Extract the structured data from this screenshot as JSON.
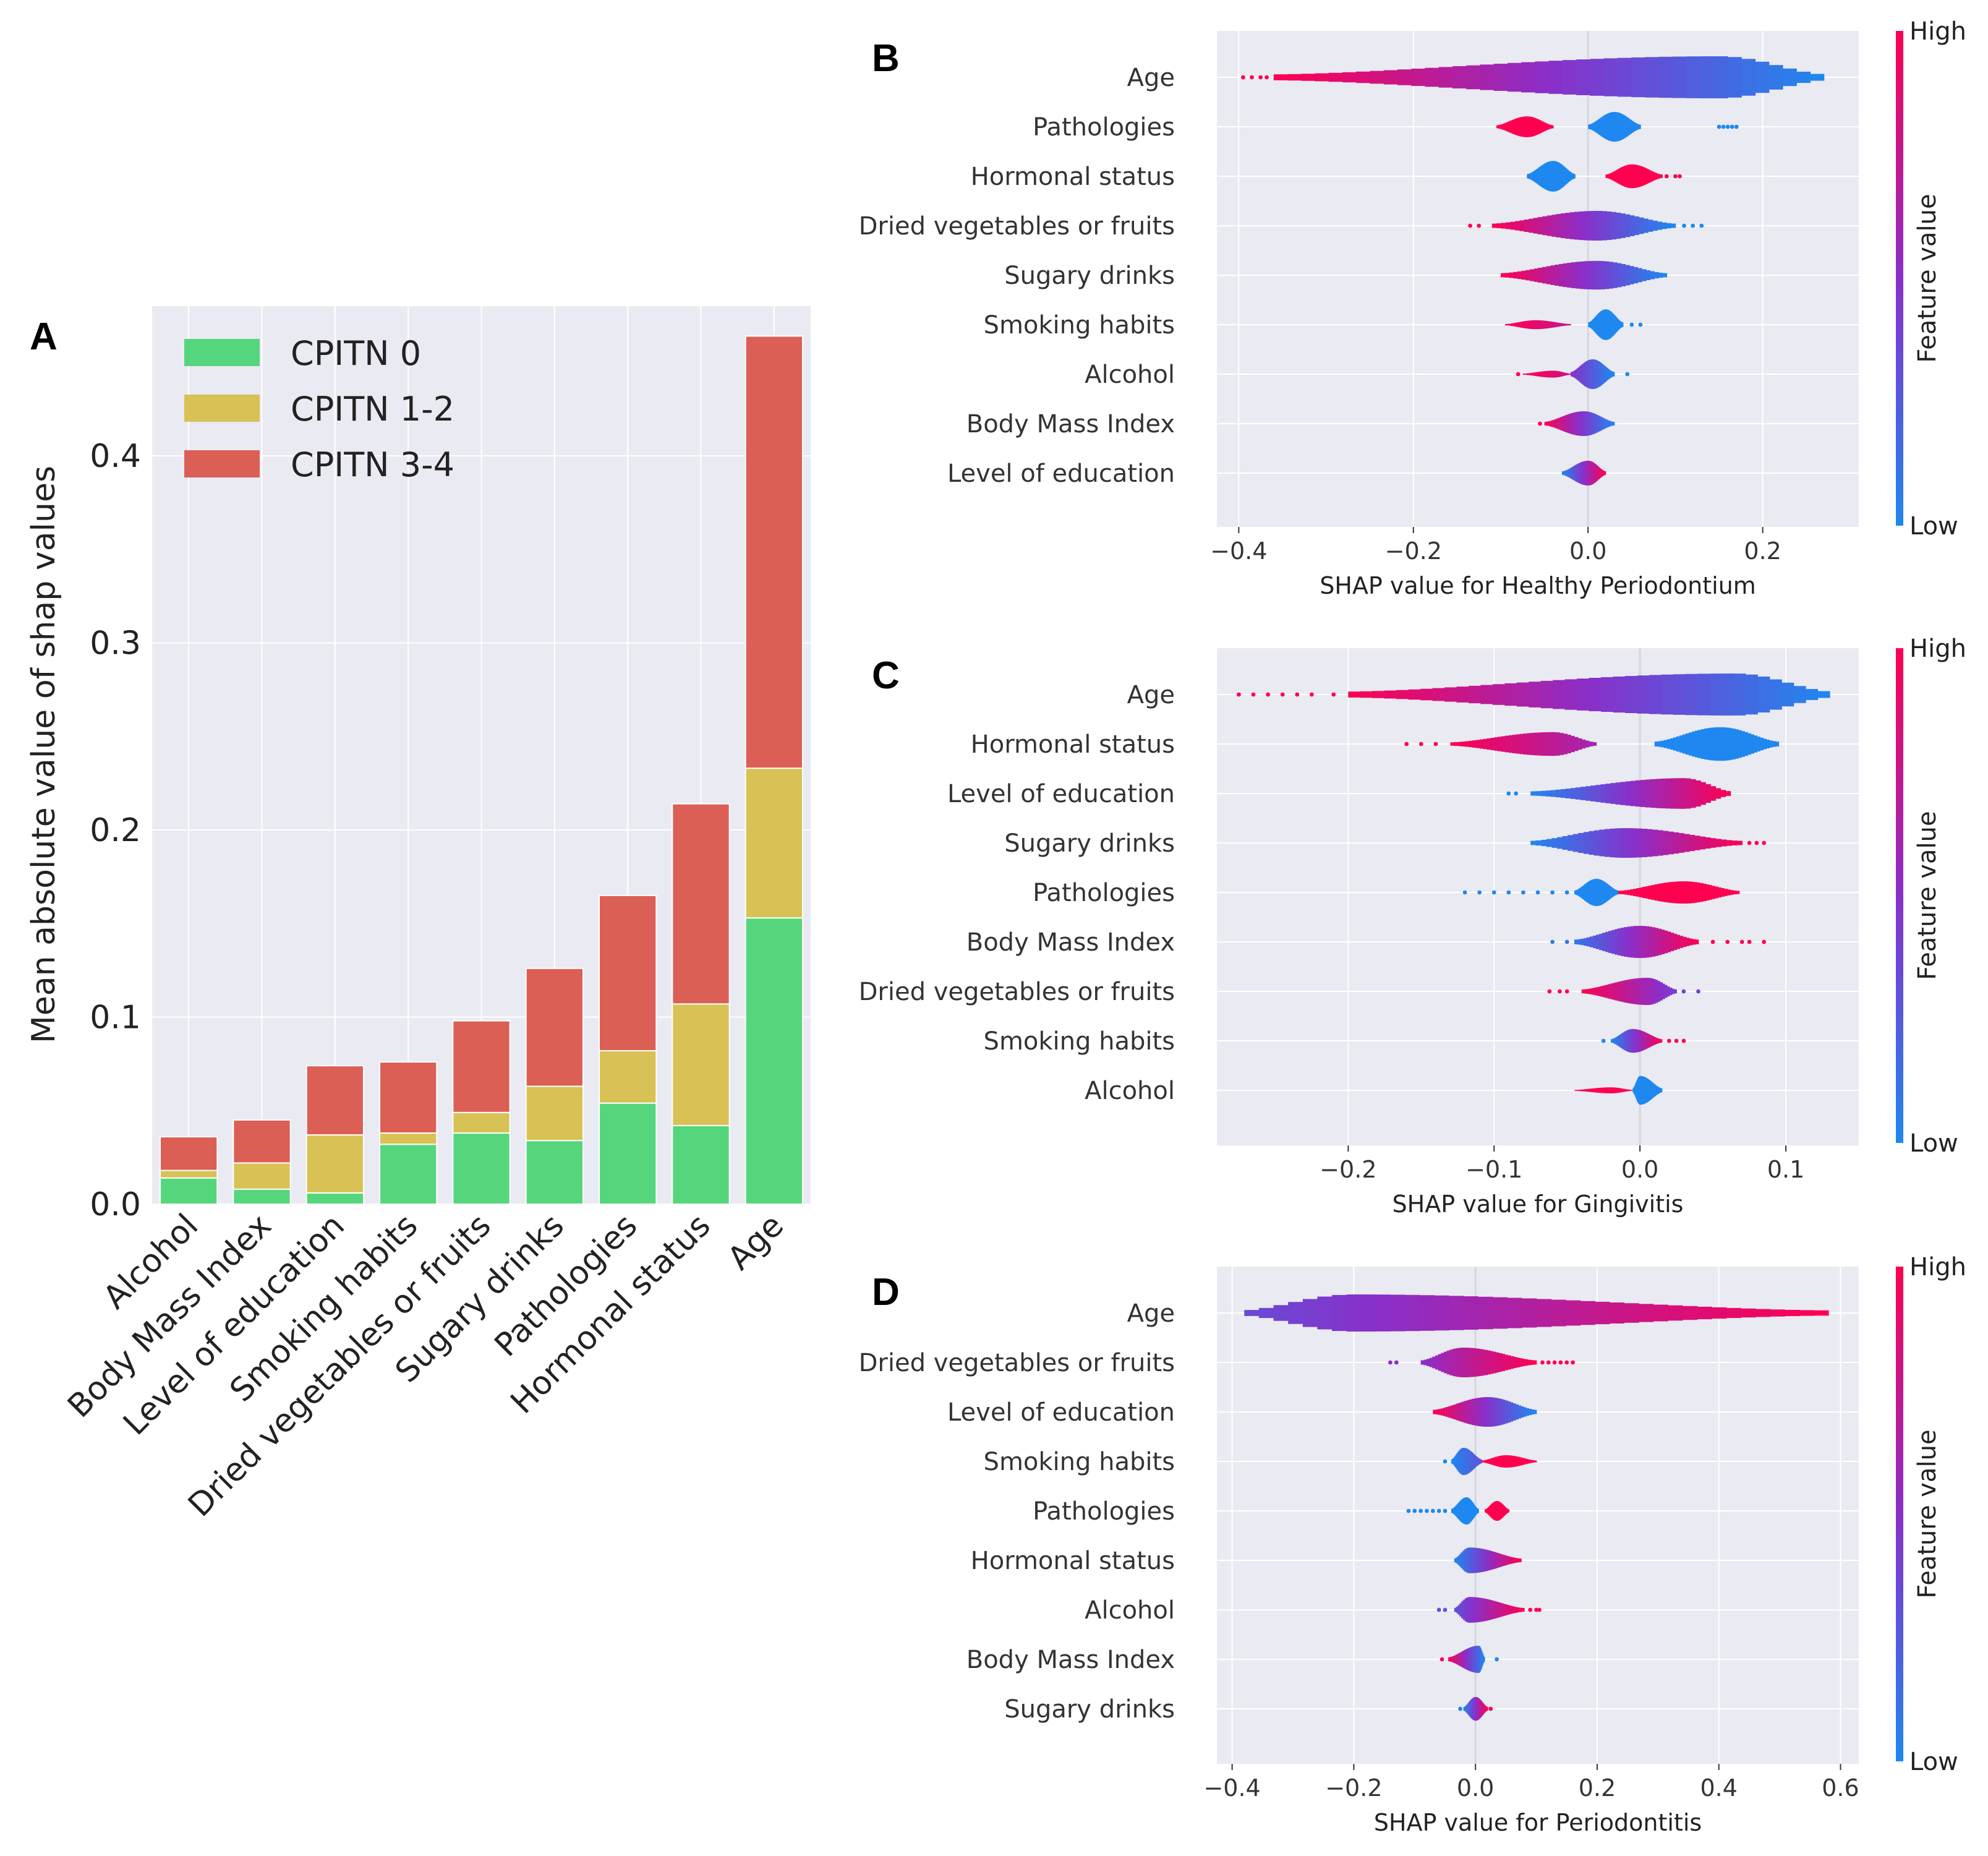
{
  "panels": {
    "A": {
      "letter": "A"
    },
    "B": {
      "letter": "B"
    },
    "C": {
      "letter": "C"
    },
    "D": {
      "letter": "D"
    }
  },
  "colors": {
    "cpitn0": "#55d67c",
    "cpitn12": "#d8c155",
    "cpitn34": "#db5f55",
    "low": "#1e88f0",
    "mid": "#8a2fc9",
    "high": "#ff0050",
    "plot_bg": "#eaeaf2"
  },
  "chart_data": [
    {
      "id": "A",
      "type": "bar",
      "stacked": true,
      "categories": [
        "Alcohol",
        "Body Mass Index",
        "Level of education",
        "Smoking habits",
        "Dried vegetables or fruits",
        "Sugary drinks",
        "Pathologies",
        "Hormonal status",
        "Age"
      ],
      "series": [
        {
          "name": "CPITN 0",
          "values": [
            0.014,
            0.008,
            0.006,
            0.032,
            0.038,
            0.034,
            0.054,
            0.042,
            0.153
          ]
        },
        {
          "name": "CPITN 1-2",
          "values": [
            0.004,
            0.014,
            0.031,
            0.006,
            0.011,
            0.029,
            0.028,
            0.065,
            0.08
          ]
        },
        {
          "name": "CPITN 3-4",
          "values": [
            0.018,
            0.023,
            0.037,
            0.038,
            0.049,
            0.063,
            0.083,
            0.107,
            0.231
          ]
        }
      ],
      "ylabel": "Mean absolute value of shap values",
      "xlabel": "",
      "ylim": [
        0,
        0.48
      ],
      "yticks": [
        0.0,
        0.1,
        0.2,
        0.3,
        0.4
      ],
      "ytick_labels": [
        "0.0",
        "0.1",
        "0.2",
        "0.3",
        "0.4"
      ],
      "legend_position": "top-left",
      "grid": true
    },
    {
      "id": "B",
      "type": "violin",
      "xlabel": "SHAP value for Healthy Periodontium",
      "xlim": [
        -0.425,
        0.31
      ],
      "xticks": [
        -0.4,
        -0.2,
        0.0,
        0.2
      ],
      "xtick_labels": [
        "−0.4",
        "−0.2",
        "0.0",
        "0.2"
      ],
      "colorbar": {
        "label": "Feature value",
        "high": "High",
        "low": "Low"
      },
      "features": [
        {
          "name": "Age",
          "min": -0.395,
          "max": 0.27,
          "parts": [
            {
              "from": -0.36,
              "to": 0.27,
              "peak": 0.15,
              "height": 0.85,
              "c0": 1.0,
              "c1": 0.0
            }
          ],
          "dots": [
            -0.395,
            -0.385,
            -0.375,
            -0.368
          ]
        },
        {
          "name": "Pathologies",
          "min": -0.105,
          "max": 0.17,
          "parts": [
            {
              "from": -0.105,
              "to": -0.04,
              "peak": -0.07,
              "height": 0.42,
              "c0": 1.0,
              "c1": 1.0
            },
            {
              "from": 0.0,
              "to": 0.06,
              "peak": 0.03,
              "height": 0.6,
              "c0": 0.0,
              "c1": 0.0
            }
          ],
          "dots": [
            0.15,
            0.155,
            0.16,
            0.165,
            0.17
          ]
        },
        {
          "name": "Hormonal status",
          "min": -0.07,
          "max": 0.11,
          "parts": [
            {
              "from": -0.07,
              "to": -0.015,
              "peak": -0.04,
              "height": 0.62,
              "c0": 0.0,
              "c1": 0.0
            },
            {
              "from": 0.02,
              "to": 0.085,
              "peak": 0.05,
              "height": 0.48,
              "c0": 1.0,
              "c1": 1.0
            }
          ],
          "dots": [
            0.09,
            0.1,
            0.105
          ]
        },
        {
          "name": "Dried vegetables or fruits",
          "min": -0.135,
          "max": 0.13,
          "parts": [
            {
              "from": -0.11,
              "to": 0.1,
              "peak": 0.01,
              "height": 0.6,
              "c0": 1.0,
              "c1": 0.0
            }
          ],
          "dots": [
            -0.135,
            -0.125,
            0.11,
            0.12,
            0.13
          ]
        },
        {
          "name": "Sugary drinks",
          "min": -0.1,
          "max": 0.09,
          "parts": [
            {
              "from": -0.1,
              "to": 0.09,
              "peak": 0.01,
              "height": 0.58,
              "c0": 1.0,
              "c1": 0.0
            }
          ],
          "dots": []
        },
        {
          "name": "Smoking habits",
          "min": -0.095,
          "max": 0.06,
          "parts": [
            {
              "from": -0.095,
              "to": -0.02,
              "peak": -0.06,
              "height": 0.18,
              "c0": 1.0,
              "c1": 0.75
            },
            {
              "from": 0.0,
              "to": 0.04,
              "peak": 0.02,
              "height": 0.62,
              "c0": 0.0,
              "c1": 0.0
            }
          ],
          "dots": [
            0.05,
            0.06
          ]
        },
        {
          "name": "Alcohol",
          "min": -0.08,
          "max": 0.05,
          "parts": [
            {
              "from": -0.075,
              "to": -0.02,
              "peak": -0.04,
              "height": 0.14,
              "c0": 1.0,
              "c1": 0.8
            },
            {
              "from": -0.02,
              "to": 0.03,
              "peak": 0.005,
              "height": 0.6,
              "c0": 0.5,
              "c1": 0.0
            }
          ],
          "dots": [
            -0.08,
            0.045
          ]
        },
        {
          "name": "Body Mass Index",
          "min": -0.055,
          "max": 0.03,
          "parts": [
            {
              "from": -0.05,
              "to": 0.03,
              "peak": -0.005,
              "height": 0.5,
              "c0": 1.0,
              "c1": 0.0
            }
          ],
          "dots": [
            -0.055
          ]
        },
        {
          "name": "Level of education",
          "min": -0.03,
          "max": 0.02,
          "parts": [
            {
              "from": -0.03,
              "to": 0.02,
              "peak": 0.0,
              "height": 0.5,
              "c0": 0.0,
              "c1": 1.0
            }
          ],
          "dots": []
        }
      ]
    },
    {
      "id": "C",
      "type": "violin",
      "xlabel": "SHAP value for Gingivitis",
      "xlim": [
        -0.29,
        0.15
      ],
      "xticks": [
        -0.2,
        -0.1,
        0.0,
        0.1
      ],
      "xtick_labels": [
        "−0.2",
        "−0.1",
        "0.0",
        "0.1"
      ],
      "colorbar": {
        "label": "Feature value",
        "high": "High",
        "low": "Low"
      },
      "features": [
        {
          "name": "Age",
          "min": -0.275,
          "max": 0.13,
          "parts": [
            {
              "from": -0.2,
              "to": 0.13,
              "peak": 0.065,
              "height": 0.85,
              "c0": 1.0,
              "c1": 0.0
            }
          ],
          "dots": [
            -0.275,
            -0.265,
            -0.255,
            -0.245,
            -0.235,
            -0.225,
            -0.21
          ]
        },
        {
          "name": "Hormonal status",
          "min": -0.16,
          "max": 0.095,
          "parts": [
            {
              "from": -0.13,
              "to": -0.03,
              "peak": -0.06,
              "height": 0.48,
              "c0": 1.0,
              "c1": 0.6
            },
            {
              "from": 0.01,
              "to": 0.095,
              "peak": 0.055,
              "height": 0.68,
              "c0": 0.0,
              "c1": 0.0
            }
          ],
          "dots": [
            -0.16,
            -0.15,
            -0.14
          ]
        },
        {
          "name": "Level of education",
          "min": -0.09,
          "max": 0.062,
          "parts": [
            {
              "from": -0.075,
              "to": 0.062,
              "peak": 0.03,
              "height": 0.62,
              "c0": 0.0,
              "c1": 1.0
            }
          ],
          "dots": [
            -0.09,
            -0.085
          ]
        },
        {
          "name": "Sugary drinks",
          "min": -0.075,
          "max": 0.085,
          "parts": [
            {
              "from": -0.075,
              "to": 0.07,
              "peak": -0.01,
              "height": 0.6,
              "c0": 0.0,
              "c1": 1.0
            }
          ],
          "dots": [
            0.075,
            0.08,
            0.085
          ]
        },
        {
          "name": "Pathologies",
          "min": -0.12,
          "max": 0.068,
          "parts": [
            {
              "from": -0.045,
              "to": -0.015,
              "peak": -0.03,
              "height": 0.55,
              "c0": 0.0,
              "c1": 0.0
            },
            {
              "from": -0.015,
              "to": 0.068,
              "peak": 0.03,
              "height": 0.45,
              "c0": 1.0,
              "c1": 1.0
            }
          ],
          "dots": [
            -0.12,
            -0.11,
            -0.1,
            -0.09,
            -0.08,
            -0.07,
            -0.06,
            -0.05
          ]
        },
        {
          "name": "Body Mass Index",
          "min": -0.06,
          "max": 0.085,
          "parts": [
            {
              "from": -0.045,
              "to": 0.04,
              "peak": 0.0,
              "height": 0.65,
              "c0": 0.1,
              "c1": 1.0
            }
          ],
          "dots": [
            -0.06,
            -0.05,
            0.05,
            0.06,
            0.07,
            0.075,
            0.085
          ]
        },
        {
          "name": "Dried vegetables or fruits",
          "min": -0.062,
          "max": 0.04,
          "parts": [
            {
              "from": -0.04,
              "to": 0.025,
              "peak": 0.005,
              "height": 0.55,
              "c0": 1.0,
              "c1": 0.4
            }
          ],
          "dots": [
            -0.062,
            -0.055,
            -0.05,
            0.03,
            0.04
          ]
        },
        {
          "name": "Smoking habits",
          "min": -0.025,
          "max": 0.03,
          "parts": [
            {
              "from": -0.02,
              "to": 0.015,
              "peak": -0.005,
              "height": 0.48,
              "c0": 0.0,
              "c1": 1.0
            }
          ],
          "dots": [
            -0.025,
            0.02,
            0.025,
            0.03
          ]
        },
        {
          "name": "Alcohol",
          "min": -0.045,
          "max": 0.015,
          "parts": [
            {
              "from": -0.045,
              "to": -0.005,
              "peak": -0.02,
              "height": 0.12,
              "c0": 1.0,
              "c1": 1.0
            },
            {
              "from": -0.005,
              "to": 0.015,
              "peak": 0.0,
              "height": 0.58,
              "c0": 0.0,
              "c1": 0.0
            }
          ],
          "dots": []
        }
      ]
    },
    {
      "id": "D",
      "type": "violin",
      "xlabel": "SHAP value for Periodontitis",
      "xlim": [
        -0.425,
        0.63
      ],
      "xticks": [
        -0.4,
        -0.2,
        0.0,
        0.2,
        0.4,
        0.6
      ],
      "xtick_labels": [
        "−0.4",
        "−0.2",
        "0.0",
        "0.2",
        "0.4",
        "0.6"
      ],
      "colorbar": {
        "label": "Feature value",
        "high": "High",
        "low": "Low"
      },
      "features": [
        {
          "name": "Age",
          "min": -0.38,
          "max": 0.58,
          "parts": [
            {
              "from": -0.38,
              "to": 0.58,
              "peak": -0.2,
              "height": 0.75,
              "c0": 0.35,
              "c1": 1.0
            }
          ],
          "dots": []
        },
        {
          "name": "Dried vegetables or fruits",
          "min": -0.14,
          "max": 0.16,
          "parts": [
            {
              "from": -0.09,
              "to": 0.1,
              "peak": -0.02,
              "height": 0.6,
              "c0": 0.5,
              "c1": 1.0
            }
          ],
          "dots": [
            -0.14,
            -0.13,
            0.11,
            0.12,
            0.13,
            0.14,
            0.15,
            0.16
          ]
        },
        {
          "name": "Level of education",
          "min": -0.07,
          "max": 0.1,
          "parts": [
            {
              "from": -0.07,
              "to": 0.1,
              "peak": 0.02,
              "height": 0.6,
              "c0": 1.0,
              "c1": 0.0
            }
          ],
          "dots": []
        },
        {
          "name": "Smoking habits",
          "min": -0.05,
          "max": 0.1,
          "parts": [
            {
              "from": -0.04,
              "to": 0.01,
              "peak": -0.02,
              "height": 0.55,
              "c0": 0.0,
              "c1": 0.3
            },
            {
              "from": 0.01,
              "to": 0.1,
              "peak": 0.05,
              "height": 0.25,
              "c0": 1.0,
              "c1": 1.0
            }
          ],
          "dots": [
            -0.05
          ]
        },
        {
          "name": "Pathologies",
          "min": -0.11,
          "max": 0.055,
          "parts": [
            {
              "from": -0.04,
              "to": 0.005,
              "peak": -0.015,
              "height": 0.55,
              "c0": 0.0,
              "c1": 0.0
            },
            {
              "from": 0.015,
              "to": 0.055,
              "peak": 0.035,
              "height": 0.4,
              "c0": 1.0,
              "c1": 1.0
            }
          ],
          "dots": [
            -0.11,
            -0.1,
            -0.09,
            -0.08,
            -0.07,
            -0.06,
            -0.05
          ]
        },
        {
          "name": "Hormonal status",
          "min": -0.035,
          "max": 0.075,
          "parts": [
            {
              "from": -0.035,
              "to": 0.075,
              "peak": -0.01,
              "height": 0.52,
              "c0": 0.0,
              "c1": 1.0
            }
          ],
          "dots": []
        },
        {
          "name": "Alcohol",
          "min": -0.06,
          "max": 0.105,
          "parts": [
            {
              "from": -0.035,
              "to": 0.08,
              "peak": -0.01,
              "height": 0.52,
              "c0": 0.3,
              "c1": 1.0
            }
          ],
          "dots": [
            -0.06,
            -0.05,
            0.09,
            0.1,
            0.105
          ]
        },
        {
          "name": "Body Mass Index",
          "min": -0.055,
          "max": 0.035,
          "parts": [
            {
              "from": -0.045,
              "to": 0.015,
              "peak": 0.005,
              "height": 0.55,
              "c0": 1.0,
              "c1": 0.0
            }
          ],
          "dots": [
            -0.055,
            0.035
          ]
        },
        {
          "name": "Sugary drinks",
          "min": -0.025,
          "max": 0.025,
          "parts": [
            {
              "from": -0.02,
              "to": 0.02,
              "peak": 0.0,
              "height": 0.48,
              "c0": 0.0,
              "c1": 1.0
            }
          ],
          "dots": [
            -0.025,
            0.025
          ]
        }
      ]
    }
  ]
}
